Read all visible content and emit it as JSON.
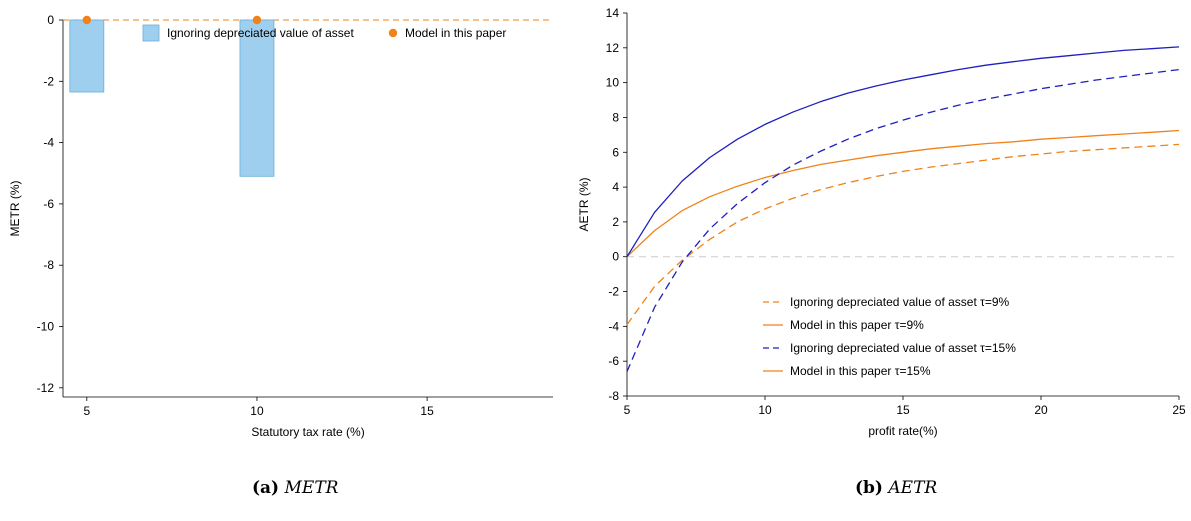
{
  "figure": {
    "captions": [
      {
        "tag": "(a)",
        "text": "METR"
      },
      {
        "tag": "(b)",
        "text": "AETR"
      }
    ]
  },
  "chart_data": [
    {
      "type": "bar",
      "xlabel": "Statutory tax rate (%)",
      "ylabel": "METR (%)",
      "xlim": [
        4.3,
        18.7
      ],
      "ylim": [
        -12.3,
        0
      ],
      "xticks": [
        5,
        10,
        15
      ],
      "yticks": [
        0,
        -2,
        -4,
        -6,
        -8,
        -10,
        -12
      ],
      "legend": {
        "position": "top",
        "entries": [
          "Ignoring depreciated value of asset",
          "Model in this paper"
        ]
      },
      "colors": {
        "bar_fill": "#9ecfee",
        "bar_stroke": "#6aaedb",
        "point": "#f08218",
        "zero_line": "#f08218",
        "axis": "#000000"
      },
      "series": [
        {
          "name": "Ignoring depreciated value of asset",
          "kind": "bar",
          "x": [
            5,
            10
          ],
          "values": [
            -2.35,
            -5.1
          ]
        },
        {
          "name": "Model in this paper",
          "kind": "point",
          "x": [
            5,
            10
          ],
          "values": [
            0,
            0
          ]
        }
      ]
    },
    {
      "type": "line",
      "xlabel": "profit rate(%)",
      "ylabel": "AETR (%)",
      "xlim": [
        5,
        25
      ],
      "ylim": [
        -8,
        14
      ],
      "xticks": [
        5,
        10,
        15,
        20,
        25
      ],
      "yticks": [
        14,
        12,
        10,
        8,
        6,
        4,
        2,
        0,
        -2,
        -4,
        -6,
        -8
      ],
      "legend": {
        "position": "lower-middle"
      },
      "colors": {
        "orange": "#f08218",
        "blue": "#1f1fbf",
        "zero_line": "#cccccc",
        "axis": "#000000"
      },
      "x": [
        5,
        6,
        7,
        8,
        9,
        10,
        11,
        12,
        13,
        14,
        15,
        16,
        17,
        18,
        19,
        20,
        21,
        22,
        23,
        24,
        25
      ],
      "series": [
        {
          "name": "Ignoring depreciated value of asset τ=9%",
          "color": "orange",
          "dash": true,
          "values": [
            -3.9,
            -1.7,
            -0.2,
            1.0,
            2.0,
            2.75,
            3.35,
            3.85,
            4.25,
            4.6,
            4.9,
            5.15,
            5.35,
            5.55,
            5.75,
            5.9,
            6.05,
            6.15,
            6.25,
            6.35,
            6.45
          ]
        },
        {
          "name": "Model in this paper τ=9%",
          "color": "orange",
          "dash": false,
          "values": [
            0,
            1.5,
            2.65,
            3.45,
            4.05,
            4.55,
            4.95,
            5.3,
            5.55,
            5.8,
            6.0,
            6.2,
            6.35,
            6.5,
            6.6,
            6.75,
            6.85,
            6.95,
            7.05,
            7.15,
            7.25
          ]
        },
        {
          "name": "Ignoring depreciated value of asset τ=15%",
          "color": "blue",
          "dash": true,
          "values": [
            -6.6,
            -2.9,
            -0.3,
            1.6,
            3.05,
            4.25,
            5.25,
            6.05,
            6.75,
            7.35,
            7.85,
            8.3,
            8.7,
            9.05,
            9.35,
            9.65,
            9.9,
            10.15,
            10.35,
            10.55,
            10.75
          ]
        },
        {
          "name": "Model in this paper τ=15%",
          "color": "blue",
          "dash": false,
          "values": [
            0,
            2.55,
            4.35,
            5.7,
            6.75,
            7.6,
            8.3,
            8.9,
            9.4,
            9.8,
            10.15,
            10.45,
            10.75,
            11.0,
            11.2,
            11.4,
            11.55,
            11.7,
            11.85,
            11.95,
            12.05
          ]
        }
      ]
    }
  ]
}
